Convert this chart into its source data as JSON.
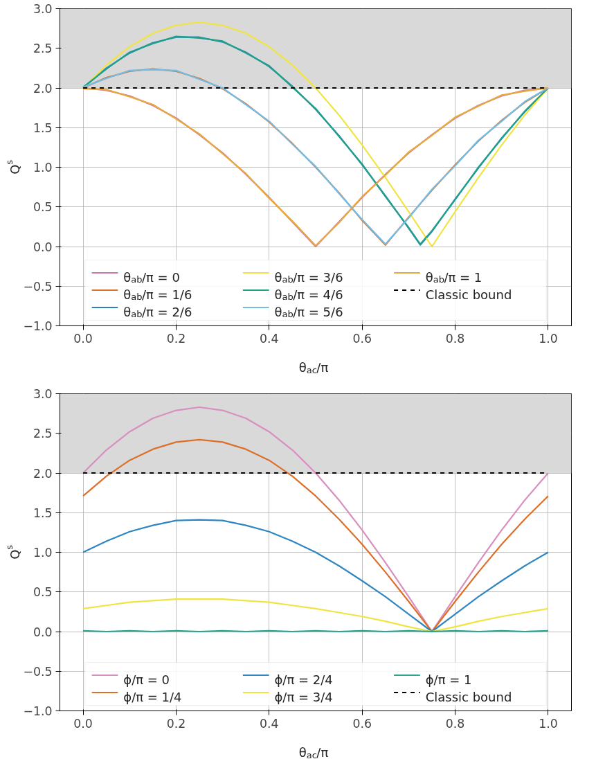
{
  "chart_data": [
    {
      "type": "line",
      "xlabel": "θ$_{ac}$/π",
      "ylabel": "Q$^{s}$",
      "xlim": [
        -0.05,
        1.05
      ],
      "ylim": [
        -1,
        3
      ],
      "xticks": [
        {
          "value": 0,
          "label": "0.0"
        },
        {
          "value": 0.2,
          "label": "0.2"
        },
        {
          "value": 0.4,
          "label": "0.4"
        },
        {
          "value": 0.6,
          "label": "0.6"
        },
        {
          "value": 0.8,
          "label": "0.8"
        },
        {
          "value": 1,
          "label": "1.0"
        }
      ],
      "yticks": [
        {
          "value": -1,
          "label": "−1.0"
        },
        {
          "value": -0.5,
          "label": "−0.5"
        },
        {
          "value": 0,
          "label": "0.0"
        },
        {
          "value": 0.5,
          "label": "0.5"
        },
        {
          "value": 1,
          "label": "1.0"
        },
        {
          "value": 1.5,
          "label": "1.5"
        },
        {
          "value": 2,
          "label": "2.0"
        },
        {
          "value": 2.5,
          "label": "2.5"
        },
        {
          "value": 3,
          "label": "3.0"
        }
      ],
      "grid": true,
      "legend": "bottom",
      "line_style": "solid",
      "marker": "none",
      "x": [
        0,
        0.05,
        0.1,
        0.15,
        0.2,
        0.25,
        0.3,
        0.35,
        0.4,
        0.45,
        0.5,
        0.55,
        0.6,
        0.65,
        0.7,
        0.75,
        0.8,
        0.85,
        0.9,
        0.95,
        1
      ],
      "series": [
        {
          "name": "θ$_{ab}$/π = 0",
          "color": "#cc79a7",
          "values": [
            2.0,
            1.97,
            1.9,
            1.78,
            1.62,
            1.41,
            1.18,
            0.91,
            0.62,
            0.31,
            0.0,
            0.31,
            0.62,
            0.91,
            1.18,
            1.41,
            1.62,
            1.78,
            1.9,
            1.97,
            2.0
          ]
        },
        {
          "name": "θ$_{ab}$/π = 1/6",
          "color": "#d9742c",
          "values": [
            2.0,
            2.13,
            2.21,
            2.24,
            2.21,
            2.12,
            1.99,
            1.8,
            1.57,
            1.3,
            1.0,
            0.68,
            0.33,
            0.02,
            0.37,
            0.71,
            1.03,
            1.33,
            1.59,
            1.82,
            2.0
          ]
        },
        {
          "name": "θ$_{ab}$/π = 2/6",
          "color": "#2b83ba",
          "x": [
            0,
            0.05,
            0.1,
            0.15,
            0.2,
            0.25,
            0.3,
            0.35,
            0.4,
            0.45,
            0.5,
            0.55,
            0.6,
            0.65,
            0.7,
            0.725,
            0.75,
            0.8,
            0.85,
            0.9,
            0.95,
            1
          ],
          "values": [
            2.0,
            2.25,
            2.44,
            2.57,
            2.64,
            2.64,
            2.58,
            2.45,
            2.27,
            2.02,
            1.73,
            1.4,
            1.03,
            0.64,
            0.23,
            0.02,
            0.19,
            0.6,
            0.99,
            1.37,
            1.7,
            2.0
          ]
        },
        {
          "name": "θ$_{ab}$/π = 3/6",
          "color": "#f0e442",
          "values": [
            2.0,
            2.29,
            2.52,
            2.69,
            2.79,
            2.83,
            2.79,
            2.69,
            2.52,
            2.29,
            2.0,
            1.66,
            1.28,
            0.87,
            0.44,
            0.0,
            0.44,
            0.87,
            1.28,
            1.66,
            2.0
          ]
        },
        {
          "name": "θ$_{ab}$/π = 4/6",
          "color": "#1fa187",
          "x": [
            0,
            0.05,
            0.1,
            0.15,
            0.2,
            0.25,
            0.3,
            0.35,
            0.4,
            0.45,
            0.5,
            0.55,
            0.6,
            0.65,
            0.7,
            0.725,
            0.75,
            0.8,
            0.85,
            0.9,
            0.95,
            1
          ],
          "values": [
            2.01,
            2.24,
            2.45,
            2.56,
            2.65,
            2.63,
            2.59,
            2.44,
            2.28,
            2.01,
            1.74,
            1.39,
            1.04,
            0.63,
            0.24,
            0.03,
            0.2,
            0.59,
            1.0,
            1.36,
            1.71,
            2.0
          ]
        },
        {
          "name": "θ$_{ab}$/π = 5/6",
          "color": "#72bde8",
          "values": [
            2.01,
            2.12,
            2.22,
            2.23,
            2.22,
            2.11,
            2.0,
            1.79,
            1.58,
            1.29,
            1.01,
            0.67,
            0.34,
            0.03,
            0.36,
            0.72,
            1.02,
            1.34,
            1.58,
            1.83,
            2.0
          ]
        },
        {
          "name": "θ$_{ab}$/π = 1",
          "color": "#e8a93a",
          "values": [
            1.99,
            1.98,
            1.89,
            1.79,
            1.61,
            1.42,
            1.17,
            0.92,
            0.61,
            0.32,
            0.01,
            0.3,
            0.63,
            0.9,
            1.19,
            1.4,
            1.63,
            1.77,
            1.91,
            1.96,
            2.0
          ]
        }
      ],
      "bands": [
        {
          "axis": "y",
          "from": 2,
          "to": 3,
          "color": "#d9d9d9"
        }
      ],
      "ref_lines": [
        {
          "axis": "y",
          "value": 2,
          "label": "Classic bound",
          "color": "#000000",
          "line_style": "dashed"
        }
      ]
    },
    {
      "type": "line",
      "xlabel": "θ$_{ac}$/π",
      "ylabel": "Q$^{s}$",
      "xlim": [
        -0.05,
        1.05
      ],
      "ylim": [
        -1,
        3
      ],
      "xticks": [
        {
          "value": 0,
          "label": "0.0"
        },
        {
          "value": 0.2,
          "label": "0.2"
        },
        {
          "value": 0.4,
          "label": "0.4"
        },
        {
          "value": 0.6,
          "label": "0.6"
        },
        {
          "value": 0.8,
          "label": "0.8"
        },
        {
          "value": 1,
          "label": "1.0"
        }
      ],
      "yticks": [
        {
          "value": -1,
          "label": "−1.0"
        },
        {
          "value": -0.5,
          "label": "−0.5"
        },
        {
          "value": 0,
          "label": "0.0"
        },
        {
          "value": 0.5,
          "label": "0.5"
        },
        {
          "value": 1,
          "label": "1.0"
        },
        {
          "value": 1.5,
          "label": "1.5"
        },
        {
          "value": 2,
          "label": "2.0"
        },
        {
          "value": 2.5,
          "label": "2.5"
        },
        {
          "value": 3,
          "label": "3.0"
        }
      ],
      "grid": true,
      "legend": "bottom",
      "line_style": "solid",
      "marker": "none",
      "x": [
        0,
        0.05,
        0.1,
        0.15,
        0.2,
        0.25,
        0.3,
        0.35,
        0.4,
        0.45,
        0.5,
        0.55,
        0.6,
        0.65,
        0.7,
        0.75,
        0.8,
        0.85,
        0.9,
        0.95,
        1
      ],
      "series": [
        {
          "name": "ϕ/π = 0",
          "color": "#d88fbd",
          "values": [
            2.0,
            2.29,
            2.52,
            2.69,
            2.79,
            2.83,
            2.79,
            2.69,
            2.52,
            2.29,
            2.0,
            1.66,
            1.28,
            0.87,
            0.44,
            0.0,
            0.44,
            0.87,
            1.28,
            1.66,
            2.0
          ]
        },
        {
          "name": "ϕ/π = 1/4",
          "color": "#dc6f2a",
          "values": [
            1.71,
            1.96,
            2.16,
            2.3,
            2.39,
            2.42,
            2.39,
            2.3,
            2.16,
            1.96,
            1.71,
            1.42,
            1.1,
            0.75,
            0.38,
            0.0,
            0.38,
            0.75,
            1.1,
            1.42,
            1.71
          ]
        },
        {
          "name": "ϕ/π = 2/4",
          "color": "#2f86c0",
          "values": [
            1.0,
            1.14,
            1.26,
            1.34,
            1.4,
            1.41,
            1.4,
            1.34,
            1.26,
            1.14,
            1.0,
            0.83,
            0.64,
            0.44,
            0.22,
            0.0,
            0.22,
            0.44,
            0.64,
            0.83,
            1.0
          ]
        },
        {
          "name": "ϕ/π = 3/4",
          "color": "#f0e442",
          "values": [
            0.29,
            0.33,
            0.37,
            0.39,
            0.41,
            0.41,
            0.41,
            0.39,
            0.37,
            0.33,
            0.29,
            0.24,
            0.19,
            0.13,
            0.06,
            0.0,
            0.06,
            0.13,
            0.19,
            0.24,
            0.29
          ]
        },
        {
          "name": "ϕ/π = 1",
          "color": "#2ca58d",
          "values": [
            0.01,
            0.0,
            0.01,
            0.0,
            0.01,
            0.0,
            0.01,
            0.0,
            0.01,
            0.0,
            0.01,
            0.0,
            0.01,
            0.0,
            0.01,
            0.0,
            0.01,
            0.0,
            0.01,
            0.0,
            0.01
          ]
        }
      ],
      "bands": [
        {
          "axis": "y",
          "from": 2,
          "to": 3,
          "color": "#d9d9d9"
        }
      ],
      "ref_lines": [
        {
          "axis": "y",
          "value": 2,
          "label": "Classic bound",
          "color": "#000000",
          "line_style": "dashed"
        }
      ]
    }
  ]
}
